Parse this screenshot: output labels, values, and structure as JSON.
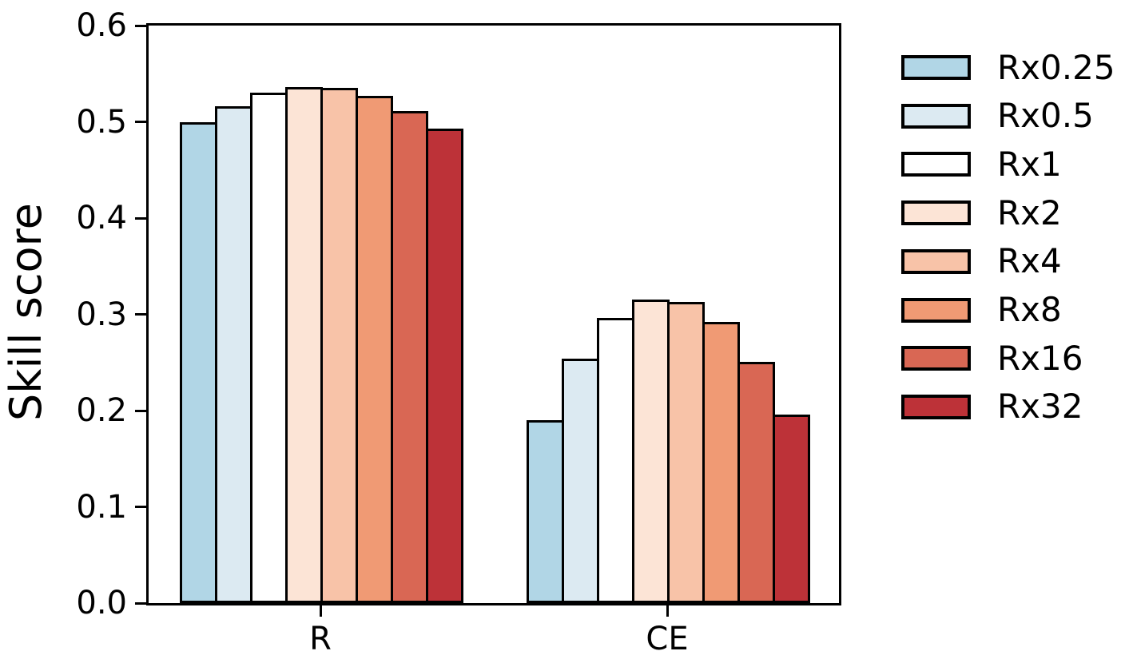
{
  "chart_data": {
    "type": "bar",
    "title": "",
    "xlabel": "",
    "ylabel": "Skill score",
    "categories": [
      "R",
      "CE"
    ],
    "series": [
      {
        "name": "Rx0.25",
        "color": "#b1d6e6",
        "values": [
          0.5,
          0.19
        ]
      },
      {
        "name": "Rx0.5",
        "color": "#dceaf2",
        "values": [
          0.516,
          0.254
        ]
      },
      {
        "name": "Rx1",
        "color": "#ffffff",
        "values": [
          0.53,
          0.296
        ]
      },
      {
        "name": "Rx2",
        "color": "#fce4d6",
        "values": [
          0.536,
          0.315
        ]
      },
      {
        "name": "Rx4",
        "color": "#f8c3a8",
        "values": [
          0.535,
          0.313
        ]
      },
      {
        "name": "Rx8",
        "color": "#f09a74",
        "values": [
          0.527,
          0.292
        ]
      },
      {
        "name": "Rx16",
        "color": "#d96754",
        "values": [
          0.511,
          0.251
        ]
      },
      {
        "name": "Rx32",
        "color": "#bd3238",
        "values": [
          0.493,
          0.196
        ]
      }
    ],
    "ylim": [
      0.0,
      0.6
    ],
    "yticks": [
      "0.0",
      "0.1",
      "0.2",
      "0.3",
      "0.4",
      "0.5",
      "0.6"
    ],
    "grid": false,
    "legend_position": "outside-right",
    "bar_edge_color": "#000000",
    "axis_color": "#000000"
  }
}
